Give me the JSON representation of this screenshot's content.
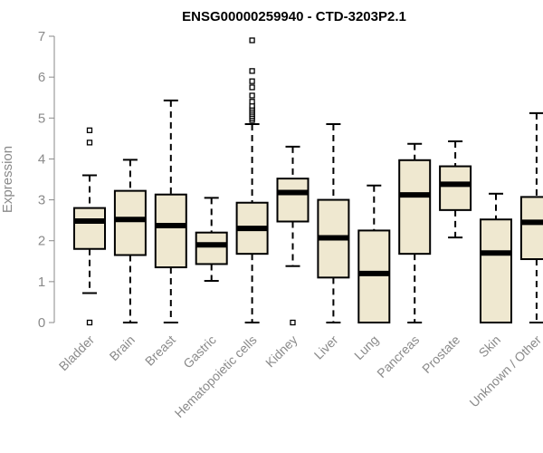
{
  "chart_data": {
    "type": "boxplot",
    "title": "ENSG00000259940 - CTD-3203P2.1",
    "ylabel": "Expression",
    "xlabel": "",
    "ylim": [
      0,
      7
    ],
    "yticks": [
      0,
      1,
      2,
      3,
      4,
      5,
      6,
      7
    ],
    "grid": false,
    "box_fill": "#efe8d0",
    "categories": [
      "Bladder",
      "Brain",
      "Breast",
      "Gastric",
      "Hematopoietic cells",
      "Kidney",
      "Liver",
      "Lung",
      "Pancreas",
      "Prostate",
      "Skin",
      "Unknown / Other"
    ],
    "boxes": [
      {
        "label": "Bladder",
        "whisker_low": 0.72,
        "q1": 1.8,
        "median": 2.48,
        "q3": 2.8,
        "whisker_high": 3.6,
        "outliers": [
          0,
          4.4,
          4.7
        ]
      },
      {
        "label": "Brain",
        "whisker_low": 0,
        "q1": 1.65,
        "median": 2.52,
        "q3": 3.22,
        "whisker_high": 3.98,
        "outliers": []
      },
      {
        "label": "Breast",
        "whisker_low": 0,
        "q1": 1.35,
        "median": 2.37,
        "q3": 3.13,
        "whisker_high": 5.43,
        "outliers": []
      },
      {
        "label": "Gastric",
        "whisker_low": 1.02,
        "q1": 1.43,
        "median": 1.9,
        "q3": 2.2,
        "whisker_high": 3.05,
        "outliers": []
      },
      {
        "label": "Hematopoietic cells",
        "whisker_low": 0,
        "q1": 1.68,
        "median": 2.3,
        "q3": 2.93,
        "whisker_high": 4.85,
        "outliers": [
          4.95,
          5.0,
          5.05,
          5.1,
          5.15,
          5.2,
          5.25,
          5.3,
          5.4,
          5.55,
          5.75,
          5.9,
          6.15,
          6.9
        ]
      },
      {
        "label": "Kidney",
        "whisker_low": 1.38,
        "q1": 2.47,
        "median": 3.18,
        "q3": 3.52,
        "whisker_high": 4.3,
        "outliers": [
          0
        ]
      },
      {
        "label": "Liver",
        "whisker_low": 0,
        "q1": 1.1,
        "median": 2.07,
        "q3": 3.0,
        "whisker_high": 4.85,
        "outliers": []
      },
      {
        "label": "Lung",
        "whisker_low": 0,
        "q1": 0,
        "median": 1.2,
        "q3": 2.25,
        "whisker_high": 3.35,
        "outliers": []
      },
      {
        "label": "Pancreas",
        "whisker_low": 0,
        "q1": 1.68,
        "median": 3.12,
        "q3": 3.97,
        "whisker_high": 4.37,
        "outliers": []
      },
      {
        "label": "Prostate",
        "whisker_low": 2.08,
        "q1": 2.75,
        "median": 3.38,
        "q3": 3.82,
        "whisker_high": 4.43,
        "outliers": []
      },
      {
        "label": "Skin",
        "whisker_low": 0,
        "q1": 0,
        "median": 1.7,
        "q3": 2.52,
        "whisker_high": 3.15,
        "outliers": []
      },
      {
        "label": "Unknown / Other",
        "whisker_low": 0,
        "q1": 1.55,
        "median": 2.45,
        "q3": 3.07,
        "whisker_high": 5.12,
        "outliers": []
      }
    ]
  }
}
